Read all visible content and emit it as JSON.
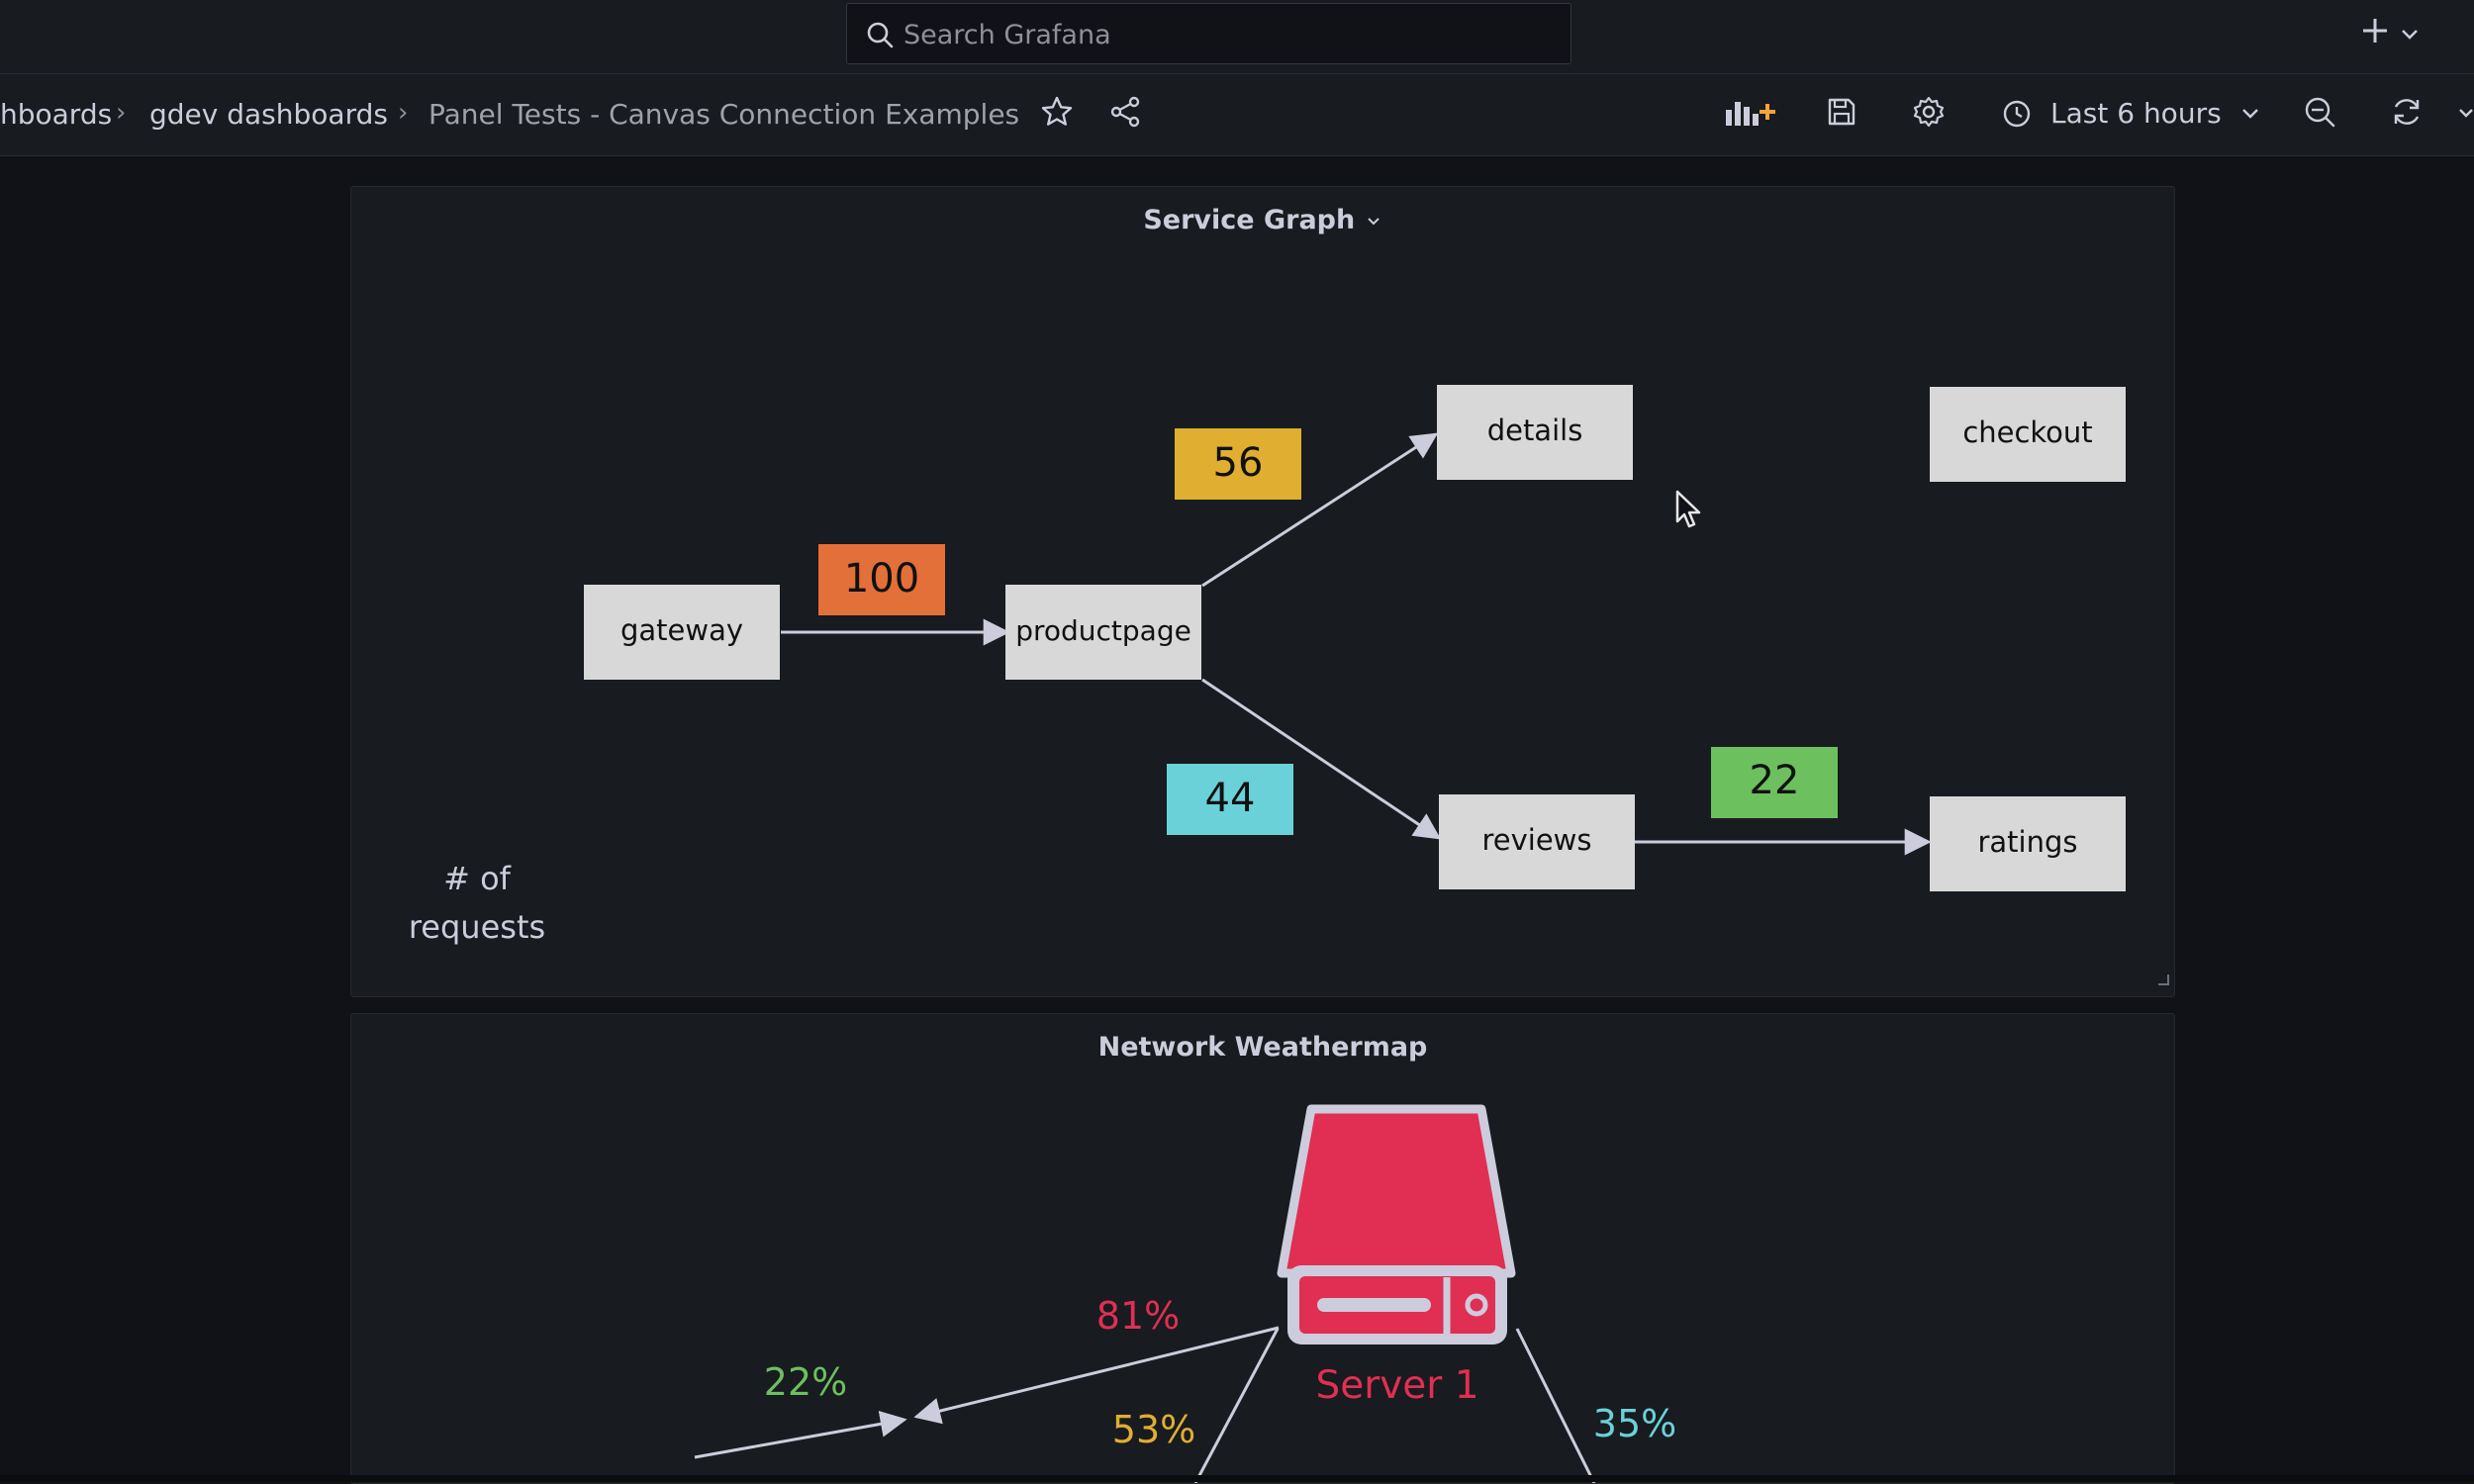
{
  "search": {
    "placeholder": "Search Grafana"
  },
  "breadcrumbs": {
    "item1": "hboards",
    "item2": "gdev dashboards",
    "current": "Panel Tests - Canvas Connection Examples"
  },
  "time_picker": {
    "label": "Last 6 hours"
  },
  "service_graph": {
    "title": "Service Graph",
    "nodes": {
      "gateway": "gateway",
      "productpage": "productpage",
      "details": "details",
      "reviews": "reviews",
      "ratings": "ratings",
      "checkout": "checkout"
    },
    "metrics": {
      "gateway_productpage": {
        "value": "100",
        "color": "#e36f39"
      },
      "productpage_details": {
        "value": "56",
        "color": "#e0ae30"
      },
      "productpage_reviews": {
        "value": "44",
        "color": "#6ad1d9"
      },
      "reviews_ratings": {
        "value": "22",
        "color": "#6cc05e"
      }
    },
    "legend_line1": "# of",
    "legend_line2": "requests"
  },
  "weathermap": {
    "title": "Network Weathermap",
    "server_label": "Server 1",
    "server_color": "#e02f53",
    "p81": "81%",
    "p22": "22%",
    "p53": "53%",
    "p35": "35%",
    "colors": {
      "p81": "#e02f53",
      "p22": "#6cc05e",
      "p53": "#e0ae30",
      "p35": "#6ad1d9"
    }
  }
}
